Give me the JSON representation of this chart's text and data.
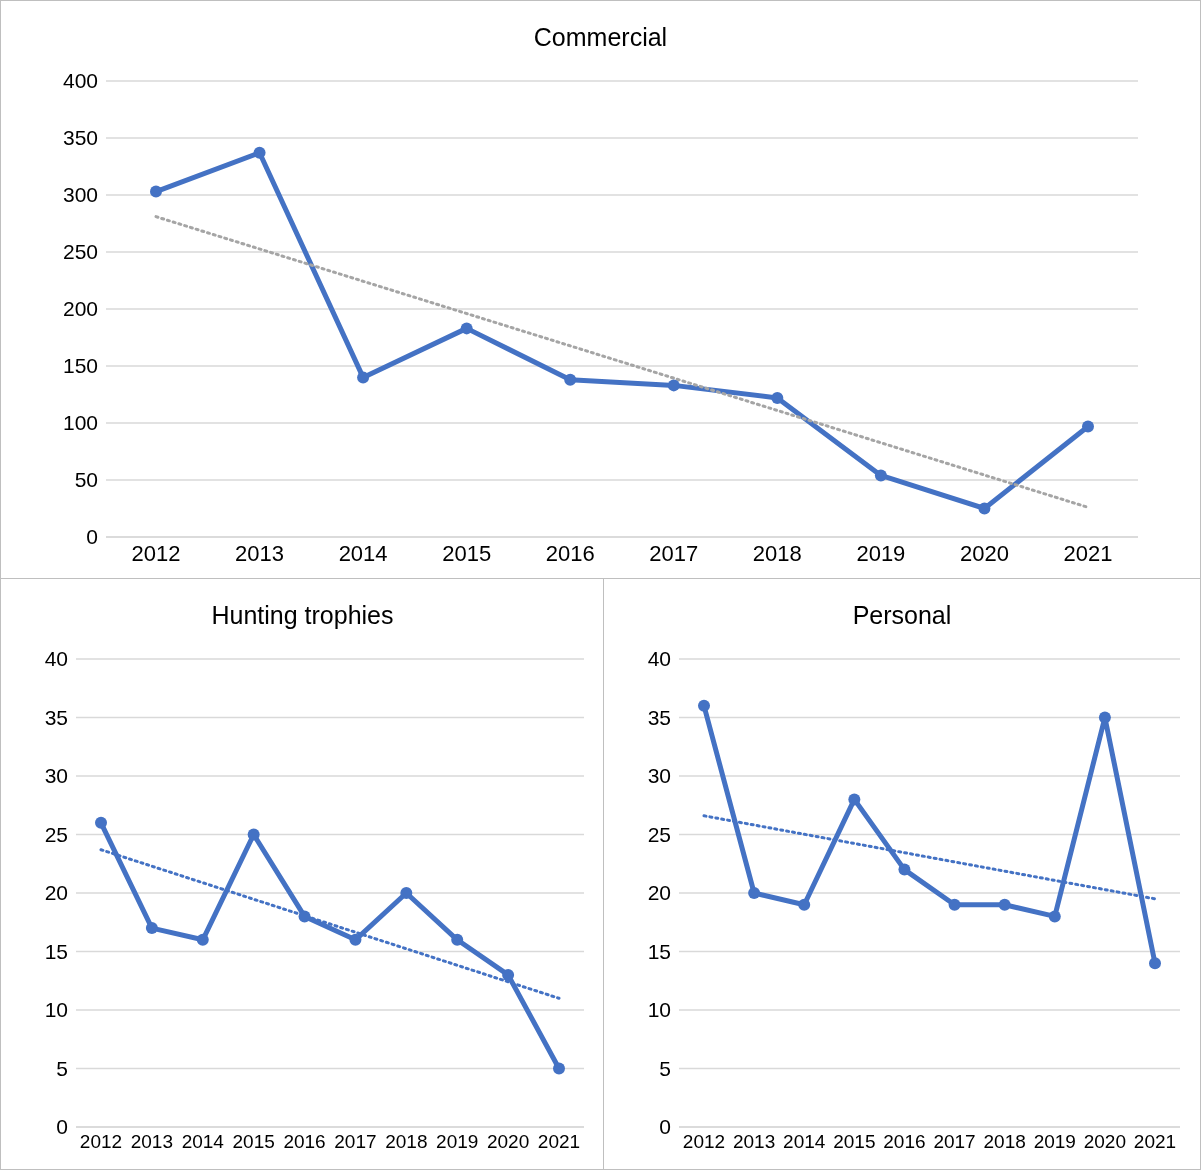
{
  "chart_data": [
    {
      "type": "line",
      "title": "Commercial",
      "categories": [
        "2012",
        "2013",
        "2014",
        "2015",
        "2016",
        "2017",
        "2018",
        "2019",
        "2020",
        "2021"
      ],
      "ylim": [
        0,
        400
      ],
      "yticks": [
        0,
        50,
        100,
        150,
        200,
        250,
        300,
        350,
        400
      ],
      "grid": "y",
      "legend": false,
      "marker": "circle",
      "line_style": "solid",
      "series": [
        {
          "color": "#4472c4",
          "values": [
            303,
            337,
            140,
            183,
            138,
            133,
            122,
            54,
            25,
            97
          ]
        },
        {
          "type": "line",
          "color": "#a5a5a5",
          "line_style": "dotted",
          "marker": "none",
          "values": [
            281,
            null,
            null,
            null,
            null,
            null,
            null,
            null,
            null,
            26
          ]
        }
      ]
    },
    {
      "type": "line",
      "title": "Hunting trophies",
      "categories": [
        "2012",
        "2013",
        "2014",
        "2015",
        "2016",
        "2017",
        "2018",
        "2019",
        "2020",
        "2021"
      ],
      "ylim": [
        0,
        40
      ],
      "yticks": [
        0,
        5,
        10,
        15,
        20,
        25,
        30,
        35,
        40
      ],
      "grid": "y",
      "legend": false,
      "marker": "circle",
      "line_style": "solid",
      "series": [
        {
          "color": "#4472c4",
          "values": [
            26,
            17,
            16,
            25,
            18,
            16,
            20,
            16,
            13,
            5
          ]
        },
        {
          "type": "line",
          "color": "#4472c4",
          "line_style": "dotted",
          "marker": "none",
          "values": [
            23.7,
            null,
            null,
            null,
            null,
            null,
            null,
            null,
            null,
            11
          ]
        }
      ]
    },
    {
      "type": "line",
      "title": "Personal",
      "categories": [
        "2012",
        "2013",
        "2014",
        "2015",
        "2016",
        "2017",
        "2018",
        "2019",
        "2020",
        "2021"
      ],
      "ylim": [
        0,
        40
      ],
      "yticks": [
        0,
        5,
        10,
        15,
        20,
        25,
        30,
        35,
        40
      ],
      "grid": "y",
      "legend": false,
      "marker": "circle",
      "line_style": "solid",
      "series": [
        {
          "color": "#4472c4",
          "values": [
            36,
            20,
            19,
            28,
            22,
            19,
            19,
            18,
            35,
            14
          ]
        },
        {
          "type": "line",
          "color": "#4472c4",
          "line_style": "dotted",
          "marker": "none",
          "values": [
            26.6,
            null,
            null,
            null,
            null,
            null,
            null,
            null,
            null,
            19.5
          ]
        }
      ]
    }
  ]
}
